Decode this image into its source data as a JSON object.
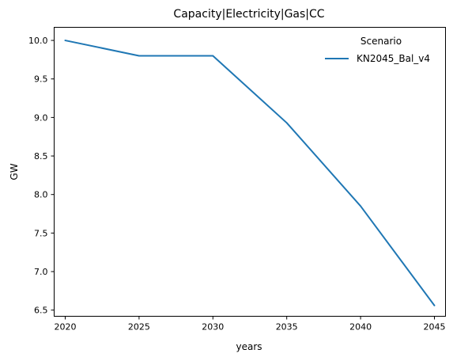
{
  "chart_data": {
    "type": "line",
    "title": "Capacity|Electricity|Gas|CC",
    "xlabel": "years",
    "ylabel": "GW",
    "x": [
      2020,
      2025,
      2030,
      2035,
      2040,
      2045
    ],
    "xticks": [
      "2020",
      "2025",
      "2030",
      "2035",
      "2040",
      "2045"
    ],
    "yticks": [
      "6.5",
      "7.0",
      "7.5",
      "8.0",
      "8.5",
      "9.0",
      "9.5",
      "10.0"
    ],
    "xlim": [
      2019.25,
      2045.75
    ],
    "ylim": [
      6.42,
      10.17
    ],
    "grid": false,
    "legend": {
      "title": "Scenario",
      "placement": "upper-right"
    },
    "series": [
      {
        "name": "KN2045_Bal_v4",
        "color": "#1f77b4",
        "values": [
          10.0,
          9.8,
          9.8,
          8.93,
          7.85,
          6.56
        ]
      }
    ]
  }
}
